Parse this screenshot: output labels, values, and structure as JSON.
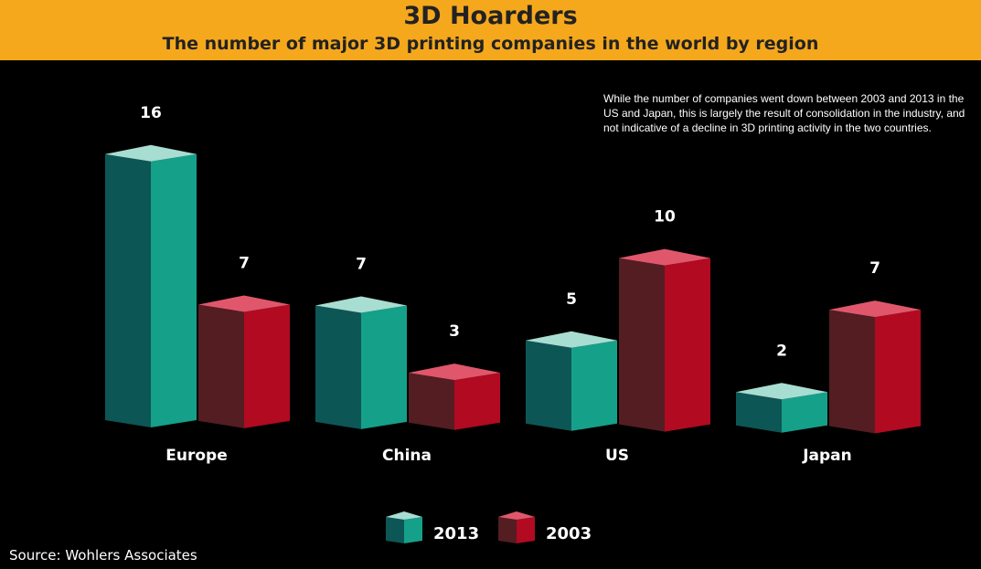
{
  "header": {
    "title": "3D Hoarders",
    "subtitle": "The number of major 3D printing companies in the world by region"
  },
  "note": "While the number of companies went down between 2003 and 2013 in the US and Japan, this is largely the result of consolidation in the industry, and not indicative of a decline in 3D printing activity in the two countries.",
  "source": "Source: Wohlers Associates",
  "colors": {
    "banner": "#f5a81c",
    "background": "#000000",
    "s2013_front": "#15a08a",
    "s2013_side": "#0d5656",
    "s2013_top": "#a8ddd2",
    "s2003_front": "#b10a21",
    "s2003_side": "#531d22",
    "s2003_top": "#e0576c"
  },
  "chart_data": {
    "type": "bar",
    "title": "3D Hoarders",
    "subtitle": "The number of major 3D printing companies in the world by region",
    "categories": [
      "Europe",
      "China",
      "US",
      "Japan"
    ],
    "series": [
      {
        "name": "2013",
        "values": [
          16,
          7,
          5,
          2
        ]
      },
      {
        "name": "2003",
        "values": [
          7,
          3,
          10,
          7
        ]
      }
    ],
    "legend": "bottom-center",
    "grid": false
  }
}
